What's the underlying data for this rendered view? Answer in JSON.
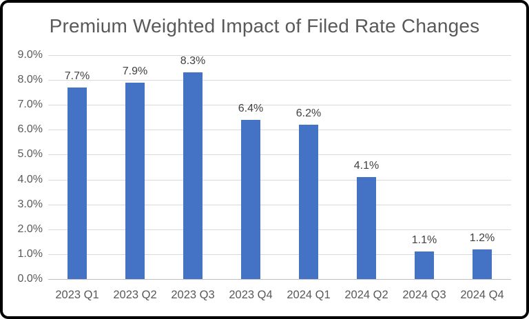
{
  "chart_data": {
    "type": "bar",
    "title": "Premium Weighted Impact of Filed Rate Changes",
    "categories": [
      "2023 Q1",
      "2023 Q2",
      "2023 Q3",
      "2023 Q4",
      "2024 Q1",
      "2024 Q2",
      "2024 Q3",
      "2024 Q4"
    ],
    "values": [
      7.7,
      7.9,
      8.3,
      6.4,
      6.2,
      4.1,
      1.1,
      1.2
    ],
    "data_labels": [
      "7.7%",
      "7.9%",
      "8.3%",
      "6.4%",
      "6.2%",
      "4.1%",
      "1.1%",
      "1.2%"
    ],
    "y_tick_labels": [
      "0.0%",
      "1.0%",
      "2.0%",
      "3.0%",
      "4.0%",
      "5.0%",
      "6.0%",
      "7.0%",
      "8.0%",
      "9.0%"
    ],
    "y_tick_values": [
      0,
      1,
      2,
      3,
      4,
      5,
      6,
      7,
      8,
      9
    ],
    "ylim": [
      0,
      9
    ],
    "xlabel": "",
    "ylabel": "",
    "grid": true,
    "legend": "none",
    "colors": {
      "bar": "#4472c4",
      "gridline": "#d9d9d9",
      "axis_line": "#bfbfbf",
      "axis_labels": "#595959",
      "data_labels": "#404040",
      "title": "#595959",
      "background": "#ffffff",
      "frame_border": "#000000"
    }
  }
}
